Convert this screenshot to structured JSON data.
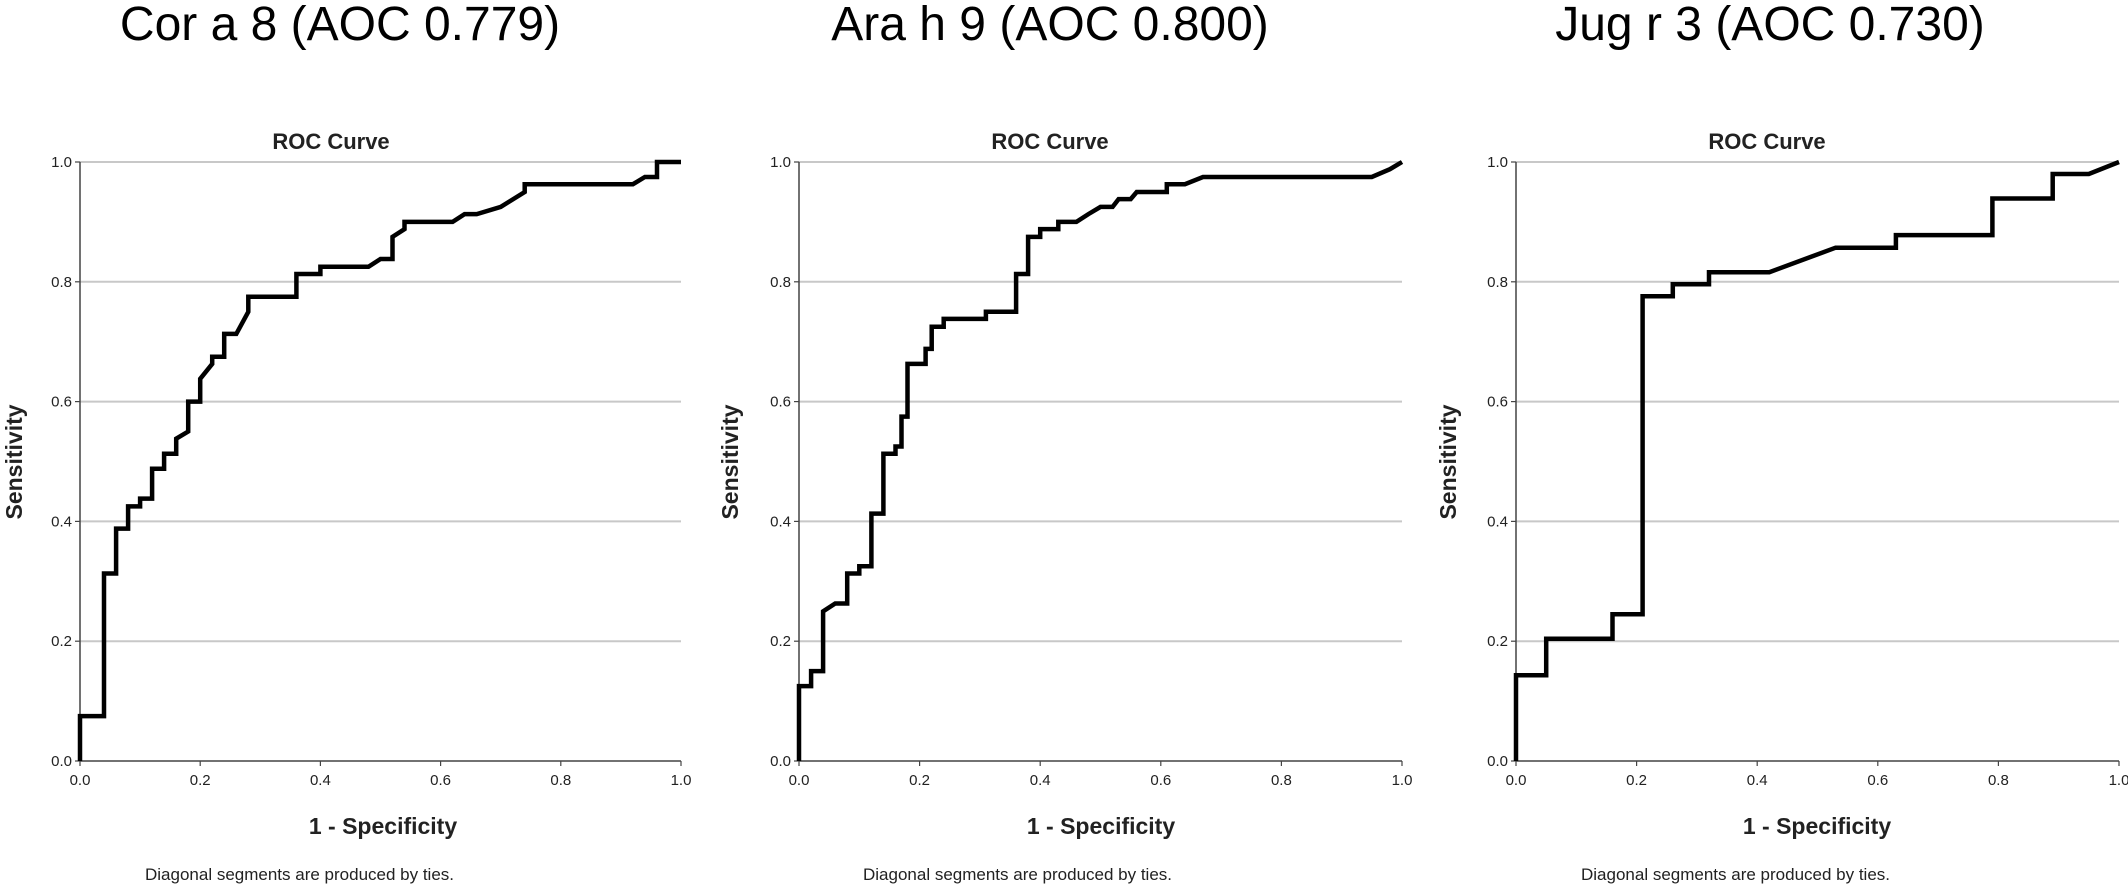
{
  "panels": [
    {
      "heading": "Cor a 8 (AOC 0.779)",
      "chart_title": "ROC Curve",
      "xlabel": "1 - Specificity",
      "ylabel": "Sensitivity",
      "footnote": "Diagonal segments are produced by ties."
    },
    {
      "heading": "Ara h 9 (AOC 0.800)",
      "chart_title": "ROC Curve",
      "xlabel": "1 - Specificity",
      "ylabel": "Sensitivity",
      "footnote": "Diagonal segments are produced by ties."
    },
    {
      "heading": "Jug r 3 (AOC 0.730)",
      "chart_title": "ROC Curve",
      "xlabel": "1 - Specificity",
      "ylabel": "Sensitivity",
      "footnote": "Diagonal segments are produced by ties."
    }
  ],
  "chart_data": [
    {
      "type": "line",
      "title": "ROC Curve",
      "xlabel": "1 - Specificity",
      "ylabel": "Sensitivity",
      "xlim": [
        0,
        1
      ],
      "ylim": [
        0,
        1
      ],
      "x_ticks": [
        "0.0",
        "0.2",
        "0.4",
        "0.6",
        "0.8",
        "1.0"
      ],
      "y_ticks": [
        "0.0",
        "0.2",
        "0.4",
        "0.6",
        "0.8",
        "1.0"
      ],
      "grid": "horizontal",
      "points": [
        [
          0,
          0
        ],
        [
          0,
          0.075
        ],
        [
          0.04,
          0.075
        ],
        [
          0.04,
          0.313
        ],
        [
          0.06,
          0.313
        ],
        [
          0.06,
          0.388
        ],
        [
          0.08,
          0.388
        ],
        [
          0.08,
          0.425
        ],
        [
          0.1,
          0.425
        ],
        [
          0.1,
          0.438
        ],
        [
          0.12,
          0.438
        ],
        [
          0.12,
          0.488
        ],
        [
          0.14,
          0.488
        ],
        [
          0.14,
          0.513
        ],
        [
          0.16,
          0.513
        ],
        [
          0.16,
          0.538
        ],
        [
          0.18,
          0.55
        ],
        [
          0.18,
          0.6
        ],
        [
          0.2,
          0.6
        ],
        [
          0.2,
          0.638
        ],
        [
          0.22,
          0.663
        ],
        [
          0.22,
          0.675
        ],
        [
          0.24,
          0.675
        ],
        [
          0.24,
          0.713
        ],
        [
          0.26,
          0.713
        ],
        [
          0.28,
          0.75
        ],
        [
          0.28,
          0.775
        ],
        [
          0.36,
          0.775
        ],
        [
          0.36,
          0.813
        ],
        [
          0.4,
          0.813
        ],
        [
          0.4,
          0.825
        ],
        [
          0.48,
          0.825
        ],
        [
          0.5,
          0.838
        ],
        [
          0.52,
          0.838
        ],
        [
          0.52,
          0.875
        ],
        [
          0.54,
          0.888
        ],
        [
          0.54,
          0.9
        ],
        [
          0.62,
          0.9
        ],
        [
          0.64,
          0.913
        ],
        [
          0.66,
          0.913
        ],
        [
          0.7,
          0.925
        ],
        [
          0.74,
          0.95
        ],
        [
          0.74,
          0.963
        ],
        [
          0.92,
          0.963
        ],
        [
          0.94,
          0.975
        ],
        [
          0.96,
          0.975
        ],
        [
          0.96,
          1
        ],
        [
          1,
          1
        ]
      ]
    },
    {
      "type": "line",
      "title": "ROC Curve",
      "xlabel": "1 - Specificity",
      "ylabel": "Sensitivity",
      "xlim": [
        0,
        1
      ],
      "ylim": [
        0,
        1
      ],
      "x_ticks": [
        "0.0",
        "0.2",
        "0.4",
        "0.6",
        "0.8",
        "1.0"
      ],
      "y_ticks": [
        "0.0",
        "0.2",
        "0.4",
        "0.6",
        "0.8",
        "1.0"
      ],
      "grid": "horizontal",
      "points": [
        [
          0,
          0
        ],
        [
          0,
          0.125
        ],
        [
          0.02,
          0.125
        ],
        [
          0.02,
          0.15
        ],
        [
          0.04,
          0.15
        ],
        [
          0.04,
          0.25
        ],
        [
          0.06,
          0.263
        ],
        [
          0.08,
          0.263
        ],
        [
          0.08,
          0.313
        ],
        [
          0.1,
          0.313
        ],
        [
          0.1,
          0.325
        ],
        [
          0.12,
          0.325
        ],
        [
          0.12,
          0.413
        ],
        [
          0.14,
          0.413
        ],
        [
          0.14,
          0.513
        ],
        [
          0.16,
          0.513
        ],
        [
          0.16,
          0.525
        ],
        [
          0.17,
          0.525
        ],
        [
          0.17,
          0.575
        ],
        [
          0.18,
          0.575
        ],
        [
          0.18,
          0.663
        ],
        [
          0.21,
          0.663
        ],
        [
          0.21,
          0.688
        ],
        [
          0.22,
          0.688
        ],
        [
          0.22,
          0.725
        ],
        [
          0.24,
          0.725
        ],
        [
          0.24,
          0.738
        ],
        [
          0.31,
          0.738
        ],
        [
          0.31,
          0.75
        ],
        [
          0.36,
          0.75
        ],
        [
          0.36,
          0.813
        ],
        [
          0.38,
          0.813
        ],
        [
          0.38,
          0.875
        ],
        [
          0.4,
          0.875
        ],
        [
          0.4,
          0.888
        ],
        [
          0.43,
          0.888
        ],
        [
          0.43,
          0.9
        ],
        [
          0.46,
          0.9
        ],
        [
          0.48,
          0.913
        ],
        [
          0.5,
          0.925
        ],
        [
          0.52,
          0.925
        ],
        [
          0.53,
          0.938
        ],
        [
          0.55,
          0.938
        ],
        [
          0.56,
          0.95
        ],
        [
          0.61,
          0.95
        ],
        [
          0.61,
          0.963
        ],
        [
          0.64,
          0.963
        ],
        [
          0.67,
          0.975
        ],
        [
          0.95,
          0.975
        ],
        [
          0.98,
          0.988
        ],
        [
          1,
          1
        ]
      ]
    },
    {
      "type": "line",
      "title": "ROC Curve",
      "xlabel": "1 - Specificity",
      "ylabel": "Sensitivity",
      "xlim": [
        0,
        1
      ],
      "ylim": [
        0,
        1
      ],
      "x_ticks": [
        "0.0",
        "0.2",
        "0.4",
        "0.6",
        "0.8",
        "1.0"
      ],
      "y_ticks": [
        "0.0",
        "0.2",
        "0.4",
        "0.6",
        "0.8",
        "1.0"
      ],
      "grid": "horizontal",
      "points": [
        [
          0,
          0
        ],
        [
          0,
          0.143
        ],
        [
          0.05,
          0.143
        ],
        [
          0.05,
          0.204
        ],
        [
          0.16,
          0.204
        ],
        [
          0.16,
          0.245
        ],
        [
          0.21,
          0.245
        ],
        [
          0.21,
          0.776
        ],
        [
          0.26,
          0.776
        ],
        [
          0.26,
          0.796
        ],
        [
          0.32,
          0.796
        ],
        [
          0.32,
          0.816
        ],
        [
          0.42,
          0.816
        ],
        [
          0.53,
          0.857
        ],
        [
          0.63,
          0.857
        ],
        [
          0.63,
          0.878
        ],
        [
          0.79,
          0.878
        ],
        [
          0.79,
          0.939
        ],
        [
          0.89,
          0.939
        ],
        [
          0.89,
          0.98
        ],
        [
          0.95,
          0.98
        ],
        [
          1,
          1
        ]
      ]
    }
  ]
}
